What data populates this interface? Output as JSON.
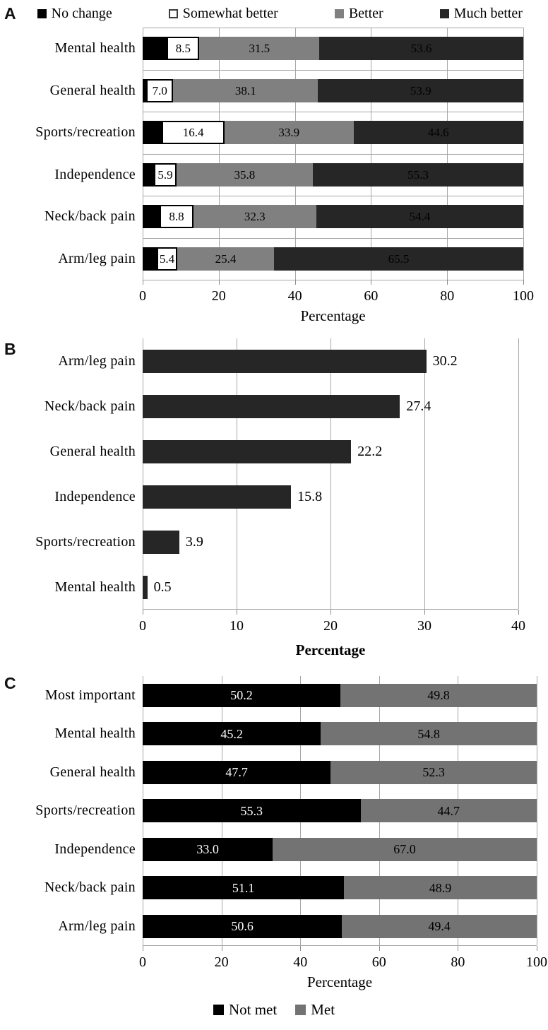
{
  "panels": {
    "a": {
      "letter": "A"
    },
    "b": {
      "letter": "B"
    },
    "c": {
      "letter": "C"
    }
  },
  "colors": {
    "black": "#000000",
    "dark_gray": "#262626",
    "medium_gray": "#808080",
    "met_gray": "#737373",
    "white": "#ffffff",
    "gridline": "#a6a6a6"
  },
  "chart_data": [
    {
      "id": "A",
      "type": "bar",
      "orientation": "horizontal",
      "stacked": true,
      "xlabel": "Percentage",
      "xlabel_bold": false,
      "xlim": [
        0,
        100
      ],
      "xticks": [
        0,
        20,
        40,
        60,
        80,
        100
      ],
      "grid": "vertical+horizontal",
      "legend_position": "top",
      "categories": [
        "Mental health",
        "General health",
        "Sports/recreation",
        "Independence",
        "Neck/back pain",
        "Arm/leg pain"
      ],
      "series": [
        {
          "name": "No change",
          "color": "#000000",
          "label_color": "#000000",
          "labels_visible": false,
          "values": [
            6.4,
            1.0,
            5.1,
            3.0,
            4.5,
            3.7
          ]
        },
        {
          "name": "Somewhat better",
          "color": "#ffffff",
          "border": "#000000",
          "label_color": "#000000",
          "labels_visible": true,
          "values": [
            8.5,
            7.0,
            16.4,
            5.9,
            8.8,
            5.4
          ]
        },
        {
          "name": "Better",
          "color": "#808080",
          "label_color": "#000000",
          "labels_visible": true,
          "values": [
            31.5,
            38.1,
            33.9,
            35.8,
            32.3,
            25.4
          ]
        },
        {
          "name": "Much better",
          "color": "#262626",
          "label_color": "#000000",
          "labels_visible": true,
          "values": [
            53.6,
            53.9,
            44.6,
            55.3,
            54.4,
            65.5
          ]
        }
      ]
    },
    {
      "id": "B",
      "type": "bar",
      "orientation": "horizontal",
      "stacked": false,
      "xlabel": "Percentage",
      "xlabel_bold": true,
      "xlim": [
        0,
        40
      ],
      "xticks": [
        0,
        10,
        20,
        30,
        40
      ],
      "grid": "vertical",
      "bar_color": "#262626",
      "value_label_position": "outside",
      "categories": [
        "Arm/leg pain",
        "Neck/back pain",
        "General health",
        "Independence",
        "Sports/recreation",
        "Mental health"
      ],
      "values": [
        30.2,
        27.4,
        22.2,
        15.8,
        3.9,
        0.5
      ]
    },
    {
      "id": "C",
      "type": "bar",
      "orientation": "horizontal",
      "stacked": true,
      "xlabel": "Percentage",
      "xlabel_bold": false,
      "xlim": [
        0,
        100
      ],
      "xticks": [
        0,
        20,
        40,
        60,
        80,
        100
      ],
      "grid": "vertical",
      "legend_position": "bottom",
      "categories": [
        "Most important",
        "Mental health",
        "General health",
        "Sports/recreation",
        "Independence",
        "Neck/back pain",
        "Arm/leg pain"
      ],
      "series": [
        {
          "name": "Not met",
          "color": "#000000",
          "label_color": "#ffffff",
          "labels_visible": true,
          "values": [
            50.2,
            45.2,
            47.7,
            55.3,
            33.0,
            51.1,
            50.6
          ]
        },
        {
          "name": "Met",
          "color": "#737373",
          "label_color": "#000000",
          "labels_visible": true,
          "values": [
            49.8,
            54.8,
            52.3,
            44.7,
            67.0,
            48.9,
            49.4
          ]
        }
      ]
    }
  ]
}
